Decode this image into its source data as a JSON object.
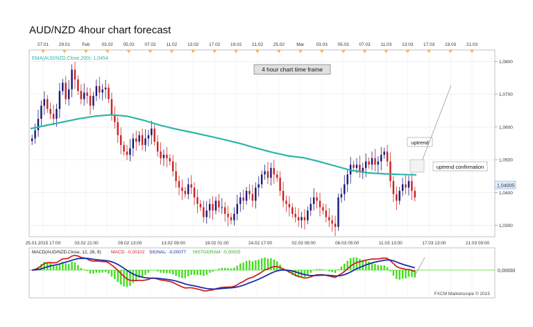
{
  "title": "AUD/NZD  4hour chart  forecast",
  "chart_data": {
    "type": "candlestick",
    "symbol": "AUD/NZD",
    "timeframe": "4hour",
    "price_ylim": [
      1.0265,
      1.0835
    ],
    "price_ticks": [
      {
        "value": 1.08,
        "label": "1,0800"
      },
      {
        "value": 1.07,
        "label": "1,0700"
      },
      {
        "value": 1.06,
        "label": "1,0600"
      },
      {
        "value": 1.05,
        "label": "1,0500"
      },
      {
        "value": 1.04,
        "label": "1,0400"
      },
      {
        "value": 1.03,
        "label": "1,0300"
      }
    ],
    "current_price": {
      "value": 1.04005,
      "label": "1,04005"
    },
    "ema_label": "EMA(AUD/NZD,Close,200): 1,0454",
    "top_date_labels": [
      "27.01",
      "29.01",
      "Feb",
      "03.02",
      "05.02",
      "07.02",
      "11.02",
      "13.02",
      "17.02",
      "19.02",
      "21.02",
      "25.02",
      "Mar",
      "03.03",
      "05.03",
      "07.03",
      "11.03",
      "13.03",
      "17.03",
      "19.03",
      "21.03"
    ],
    "bottom_date_labels": [
      "25.01.2015 17:00",
      "03.02 21:00",
      "09.02 13:00",
      "13.02 09:00",
      "19.02 01:00",
      "24.02 17:00",
      "02.03 09:00",
      "06.03 05:00",
      "11.03 13:00",
      "17.03 13:00",
      "21.03 09:00"
    ],
    "close_series": [
      1.0565,
      1.059,
      1.0625,
      1.0665,
      1.0685,
      1.0655,
      1.064,
      1.0625,
      1.0655,
      1.071,
      1.0735,
      1.0685,
      1.0715,
      1.0775,
      1.0745,
      1.071,
      1.0685,
      1.0705,
      1.0695,
      1.0665,
      1.0695,
      1.0725,
      1.0705,
      1.0715,
      1.072,
      1.0685,
      1.0635,
      1.0615,
      1.0575,
      1.0545,
      1.0525,
      1.0515,
      1.0535,
      1.0565,
      1.0555,
      1.0575,
      1.0545,
      1.0565,
      1.0575,
      1.0595,
      1.0555,
      1.0525,
      1.0505,
      1.0515,
      1.0505,
      1.0495,
      1.0465,
      1.0435,
      1.0415,
      1.0405,
      1.0395,
      1.0425,
      1.0415,
      1.0385,
      1.0365,
      1.0355,
      1.0325,
      1.0345,
      1.0365,
      1.0345,
      1.0375,
      1.0355,
      1.0355,
      1.0335,
      1.0325,
      1.0315,
      1.0335,
      1.0365,
      1.0385,
      1.0375,
      1.0405,
      1.0395,
      1.0375,
      1.0415,
      1.0425,
      1.0455,
      1.0465,
      1.0445,
      1.0475,
      1.0455,
      1.0445,
      1.0405,
      1.0375,
      1.0365,
      1.0355,
      1.0335,
      1.0325,
      1.0315,
      1.0325,
      1.0315,
      1.0345,
      1.0365,
      1.0385,
      1.0375,
      1.0355,
      1.0345,
      1.0325,
      1.0315,
      1.0305,
      1.0295,
      1.0385,
      1.0395,
      1.0425,
      1.0455,
      1.0485,
      1.0475,
      1.0485,
      1.0465,
      1.0475,
      1.0495,
      1.0485,
      1.0505,
      1.0485,
      1.0495,
      1.0515,
      1.0525,
      1.0495,
      1.0435,
      1.0395,
      1.0375,
      1.0405,
      1.0425,
      1.0415,
      1.0435,
      1.0405,
      1.0385
    ],
    "ema_series": [
      1.0595,
      1.0605,
      1.0615,
      1.0625,
      1.0633,
      1.0637,
      1.0633,
      1.0621,
      1.0606,
      1.0594,
      1.0584,
      1.0573,
      1.0562,
      1.055,
      1.0536,
      1.0523,
      1.0512,
      1.0506,
      1.0494,
      1.048,
      1.0467,
      1.046,
      1.0457,
      1.0455,
      1.0454
    ],
    "macd": {
      "label": "MACD(AUD/NZD,Close, 12, 26, 9)",
      "macd_label": "MACD: -0,00102",
      "signal_label": "SIGNAL: -0,00077",
      "histogram_label": "HISTOGRAM: -0,00025",
      "zero_label": "0,00000",
      "colors": {
        "macd": "#cc2222",
        "signal": "#1a2aa8",
        "histogram": "#44dd22"
      }
    },
    "annotations": {
      "timeframe_box": "4 hour chart time frame",
      "uptrend": "uptrend",
      "uptrend_confirmation": "uptrend confirmation"
    },
    "watermark": "FXCM Marketscope © 2015",
    "colors": {
      "up": "#1a1a7a",
      "down": "#cc2222",
      "ema": "#2ab5a7",
      "current_price_box": "#ddeeff",
      "forecast_line": "#9a9a9a"
    }
  }
}
